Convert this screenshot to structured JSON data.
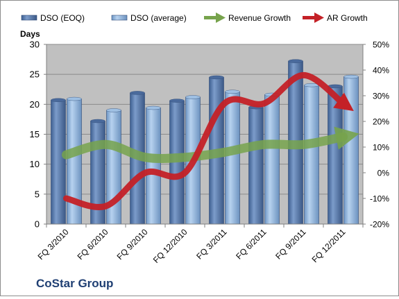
{
  "company_name": "CoStar Group",
  "chart_data": {
    "type": "bar",
    "ylabel": "Days",
    "categories": [
      "FQ 3/2010",
      "FQ 6/2010",
      "FQ 9/2010",
      "FQ 12/2010",
      "FQ 3/2011",
      "FQ 6/2011",
      "FQ 9/2011",
      "FQ 12/2011"
    ],
    "ylim": [
      0,
      30
    ],
    "y_ticks": [
      "0",
      "5",
      "10",
      "15",
      "20",
      "25",
      "30"
    ],
    "y2lim": [
      -20,
      50
    ],
    "y2_ticks": [
      "-20%",
      "-10%",
      "0%",
      "10%",
      "20%",
      "30%",
      "40%",
      "50%"
    ],
    "grid": true,
    "legend_position": "top",
    "series": [
      {
        "name": "DSO (EOQ)",
        "kind": "bar",
        "axis": "left",
        "color": "#5b7bab",
        "values": [
          20.7,
          17.2,
          21.9,
          20.6,
          24.5,
          19.5,
          27.2,
          23.0
        ]
      },
      {
        "name": "DSO (average)",
        "kind": "bar",
        "axis": "left",
        "color": "#8bb1d9",
        "values": [
          20.9,
          19.0,
          19.4,
          21.2,
          22.1,
          21.6,
          23.2,
          24.6
        ]
      },
      {
        "name": "Revenue Growth",
        "kind": "line",
        "axis": "right",
        "color": "#77a34c",
        "values": [
          7,
          11,
          6,
          6,
          8,
          11,
          11,
          14
        ]
      },
      {
        "name": "AR Growth",
        "kind": "line",
        "axis": "right",
        "color": "#c42127",
        "values": [
          -10,
          -13,
          0,
          0,
          27,
          27,
          38,
          27
        ]
      }
    ]
  }
}
